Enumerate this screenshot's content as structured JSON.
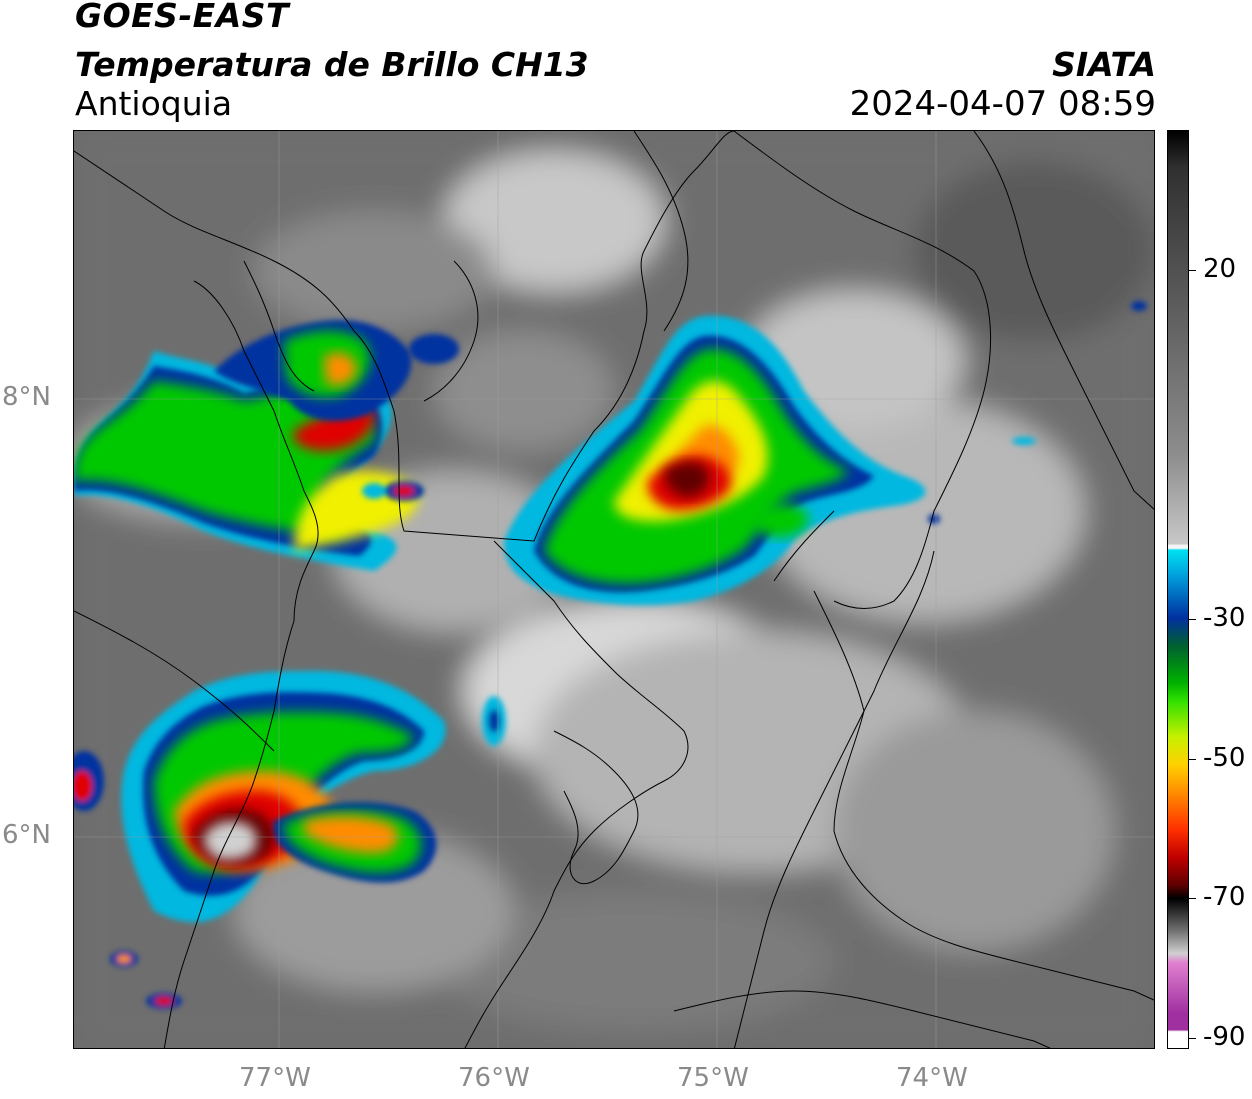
{
  "header": {
    "satellite": "GOES-EAST",
    "product": "Temperatura de Brillo CH13",
    "region": "Antioquia",
    "agency": "SIATA",
    "datetime": "2024-04-07 08:59"
  },
  "map": {
    "lat_ticks": [
      "8°N",
      "6°N"
    ],
    "lon_ticks": [
      "77°W",
      "76°W",
      "75°W",
      "74°W"
    ]
  },
  "colorbar": {
    "ticks": [
      "20",
      "-30",
      "-50",
      "-70",
      "-90"
    ],
    "colors": {
      "warm_gray": "#6b6b6b",
      "white": "#f2f2f2",
      "cyan": "#00c8e6",
      "blue": "#0030a0",
      "green": "#00c800",
      "yellow": "#f0f000",
      "orange": "#ff8c00",
      "red": "#e00000",
      "dark_red": "#600000",
      "black": "#000000",
      "magenta": "#c040c0"
    }
  }
}
